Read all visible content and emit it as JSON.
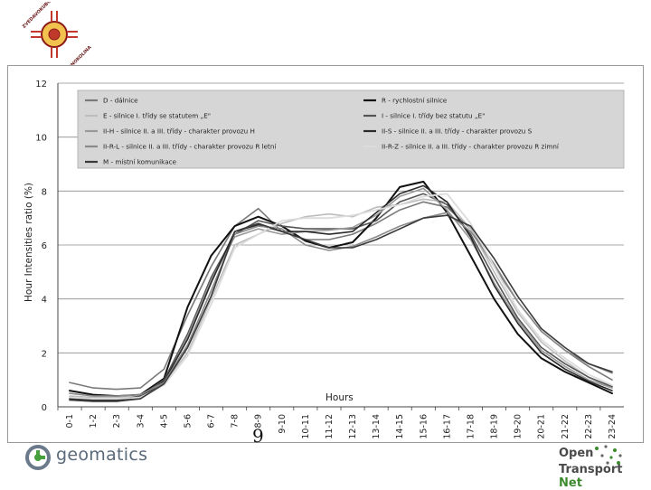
{
  "header": {
    "seal_text_top": "ZVEDAVOKUBOVNIK",
    "seal_text_bottom": "HUDNOKOLINA"
  },
  "chart_data": {
    "type": "line",
    "title": "",
    "xlabel": "Hours",
    "ylabel": "Hour Intensities ratio (%)",
    "ylim": [
      0,
      12
    ],
    "yticks": [
      0,
      2,
      4,
      6,
      8,
      10,
      12
    ],
    "grid": true,
    "legend_position": "top",
    "categories": [
      "0-1",
      "1-2",
      "2-3",
      "3-4",
      "4-5",
      "5-6",
      "6-7",
      "7-8",
      "8-9",
      "9-10",
      "10-11",
      "11-12",
      "12-13",
      "13-14",
      "14-15",
      "15-16",
      "16-17",
      "17-18",
      "18-19",
      "19-20",
      "20-21",
      "21-22",
      "22-23",
      "23-24"
    ],
    "series": [
      {
        "name": "D - dálnice",
        "color": "#7a7a7a",
        "width": 1.6,
        "values": [
          0.9,
          0.7,
          0.65,
          0.7,
          1.4,
          3.4,
          5.2,
          6.7,
          7.35,
          6.5,
          6.2,
          6.2,
          6.4,
          6.8,
          7.3,
          7.6,
          7.4,
          6.6,
          5.2,
          3.9,
          2.8,
          2.1,
          1.5,
          1.0
        ]
      },
      {
        "name": "R - rychlostní silnice",
        "color": "#111111",
        "width": 2.0,
        "values": [
          0.6,
          0.45,
          0.4,
          0.45,
          1.05,
          3.7,
          5.6,
          6.7,
          7.05,
          6.7,
          6.15,
          5.9,
          6.1,
          7.0,
          8.15,
          8.35,
          7.2,
          5.6,
          4.0,
          2.7,
          1.8,
          1.3,
          0.9,
          0.5
        ]
      },
      {
        "name": "E - silnice I. třídy se statutem „E\"",
        "color": "#bdbdbd",
        "width": 1.6,
        "values": [
          0.4,
          0.35,
          0.35,
          0.4,
          0.9,
          2.0,
          4.0,
          6.0,
          6.4,
          6.8,
          7.05,
          7.15,
          7.05,
          7.4,
          7.5,
          7.7,
          7.6,
          6.6,
          5.0,
          3.5,
          2.4,
          1.7,
          1.1,
          0.7
        ]
      },
      {
        "name": "I - silnice I. třídy bez statutu „E\"",
        "color": "#555555",
        "width": 1.6,
        "values": [
          0.3,
          0.25,
          0.25,
          0.4,
          1.0,
          2.7,
          4.8,
          6.4,
          6.9,
          6.7,
          6.6,
          6.6,
          6.6,
          6.9,
          7.6,
          7.9,
          7.5,
          6.4,
          4.8,
          3.3,
          2.2,
          1.6,
          1.1,
          0.75
        ]
      },
      {
        "name": "II-H - silnice II. a III. třídy - charakter provozu H",
        "color": "#999999",
        "width": 1.6,
        "values": [
          0.25,
          0.2,
          0.2,
          0.35,
          0.9,
          2.6,
          4.7,
          6.3,
          6.6,
          6.4,
          6.5,
          6.55,
          6.65,
          7.1,
          7.8,
          8.1,
          7.3,
          6.2,
          4.6,
          3.2,
          2.1,
          1.5,
          1.0,
          0.7
        ]
      },
      {
        "name": "II-S - silnice II. a III. třídy - charakter provozu S",
        "color": "#2a2a2a",
        "width": 1.6,
        "values": [
          0.3,
          0.25,
          0.25,
          0.35,
          0.95,
          2.5,
          4.6,
          6.5,
          6.75,
          6.5,
          6.5,
          6.4,
          6.5,
          7.2,
          7.9,
          8.2,
          7.6,
          6.3,
          4.5,
          3.1,
          2.0,
          1.4,
          0.95,
          0.6
        ]
      },
      {
        "name": "II-R-L - silnice II. a III. třídy - charakter provozu R letní",
        "color": "#8a8a8a",
        "width": 1.6,
        "values": [
          0.5,
          0.4,
          0.4,
          0.45,
          0.9,
          2.3,
          4.3,
          6.4,
          6.7,
          6.6,
          6.0,
          5.8,
          5.95,
          6.3,
          6.7,
          7.0,
          7.2,
          6.5,
          5.3,
          3.9,
          2.8,
          2.1,
          1.6,
          1.25
        ]
      },
      {
        "name": "II-R-Z - silnice II. a III. třídy - charakter provozu R zimní",
        "color": "#dcdcdc",
        "width": 1.8,
        "values": [
          0.35,
          0.3,
          0.3,
          0.35,
          0.8,
          1.9,
          3.8,
          5.9,
          6.4,
          6.9,
          7.0,
          7.0,
          7.1,
          7.3,
          7.5,
          7.8,
          7.9,
          6.8,
          5.2,
          3.6,
          2.5,
          1.8,
          1.2,
          0.8
        ]
      },
      {
        "name": "M - místní komunikace",
        "color": "#3a3a3a",
        "width": 1.6,
        "values": [
          0.25,
          0.2,
          0.2,
          0.3,
          0.85,
          2.2,
          4.1,
          6.5,
          6.8,
          6.5,
          6.2,
          5.9,
          5.9,
          6.2,
          6.6,
          7.0,
          7.1,
          6.7,
          5.5,
          4.1,
          2.9,
          2.2,
          1.6,
          1.3
        ]
      }
    ]
  },
  "page_number": "9",
  "footer": {
    "left_logo_text": "geomatics",
    "right_logo_line1": "Open",
    "right_logo_line2_a": "Transport",
    "right_logo_line2_b": "Net"
  }
}
